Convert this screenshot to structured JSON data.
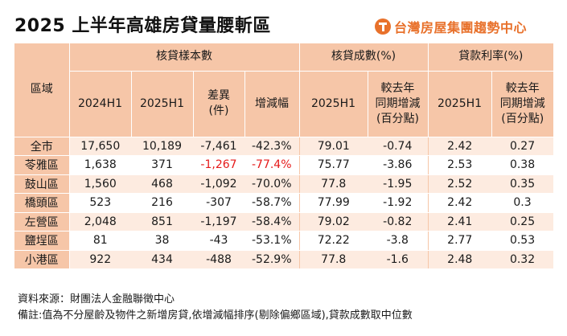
{
  "title": "2025 上半年高雄房貸量腰斬區",
  "brand": {
    "name": "台灣房屋集團趨勢中心",
    "logo": "taiwan-realty-logo-icon",
    "color": "#e8712b"
  },
  "colors": {
    "header_bg": "#f6c6a8",
    "row_alt_bg": "#fdebe0",
    "highlight_red": "#e51a1a"
  },
  "table": {
    "region_header": "區域",
    "groups": [
      "核貸樣本數",
      "核貸成數(%)",
      "貸款利率(%)"
    ],
    "columns": [
      "2024H1",
      "2025H1",
      "差異\n(件)",
      "增減幅",
      "2025H1",
      "較去年\n同期增減\n(百分點)",
      "2025H1",
      "較去年\n同期增減\n(百分點)"
    ],
    "rows": [
      {
        "region": "全市",
        "cells": [
          "17,650",
          "10,189",
          "-7,461",
          "-42.3%",
          "79.01",
          "-0.74",
          "2.42",
          "0.27"
        ],
        "highlight": false
      },
      {
        "region": "苓雅區",
        "cells": [
          "1,638",
          "371",
          "-1,267",
          "-77.4%",
          "75.77",
          "-3.86",
          "2.53",
          "0.38"
        ],
        "highlight": true
      },
      {
        "region": "鼓山區",
        "cells": [
          "1,560",
          "468",
          "-1,092",
          "-70.0%",
          "77.8",
          "-1.95",
          "2.52",
          "0.35"
        ],
        "highlight": false
      },
      {
        "region": "橋頭區",
        "cells": [
          "523",
          "216",
          "-307",
          "-58.7%",
          "77.99",
          "-1.92",
          "2.42",
          "0.3"
        ],
        "highlight": false
      },
      {
        "region": "左營區",
        "cells": [
          "2,048",
          "851",
          "-1,197",
          "-58.4%",
          "79.02",
          "-0.82",
          "2.41",
          "0.25"
        ],
        "highlight": false
      },
      {
        "region": "鹽埕區",
        "cells": [
          "81",
          "38",
          "-43",
          "-53.1%",
          "72.22",
          "-3.8",
          "2.77",
          "0.53"
        ],
        "highlight": false
      },
      {
        "region": "小港區",
        "cells": [
          "922",
          "434",
          "-488",
          "-52.9%",
          "77.8",
          "-1.6",
          "2.48",
          "0.32"
        ],
        "highlight": false
      }
    ]
  },
  "notes": {
    "source": "資料來源：財團法人金融聯徵中心",
    "remark": "備註:值為不分屋齡及物件之新增房貸,依增減幅排序(剔除偏鄉區域),貸款成數取中位數"
  }
}
